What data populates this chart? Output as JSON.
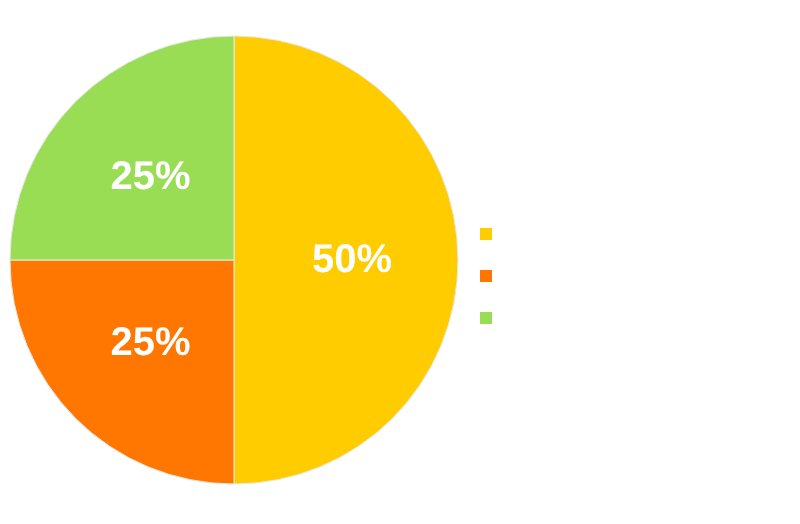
{
  "chart_data": {
    "type": "pie",
    "categories": [
      null,
      null,
      null
    ],
    "values": [
      50,
      25,
      25
    ],
    "colors": [
      "#ffcc00",
      "#ff7700",
      "#99dd55"
    ],
    "value_labels": [
      "50%",
      "25%",
      "25%"
    ]
  }
}
